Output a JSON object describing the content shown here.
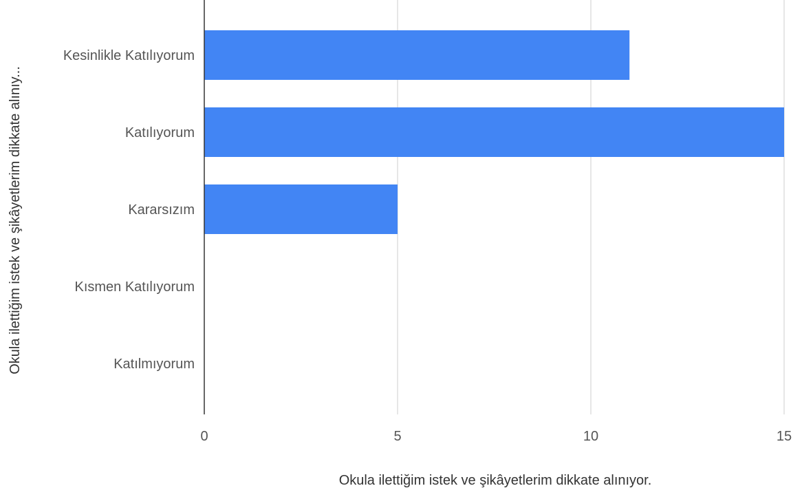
{
  "chart_data": {
    "type": "bar",
    "orientation": "horizontal",
    "x_label": "Okula ilettiğim istek ve şikâyetlerim dikkate alınıyor.",
    "y_label": "Okula ilettiğim istek ve şikâyetlerim dikkate alınıy...",
    "categories": [
      "Kesinlikle Katılıyorum",
      "Katılıyorum",
      "Kararsızım",
      "Kısmen Katılıyorum",
      "Katılmıyorum"
    ],
    "values": [
      11,
      15,
      5,
      0,
      0
    ],
    "color": "#4285f4",
    "xlim": [
      0,
      15
    ],
    "xticks": [
      0,
      5,
      10,
      15
    ],
    "grid": true
  }
}
